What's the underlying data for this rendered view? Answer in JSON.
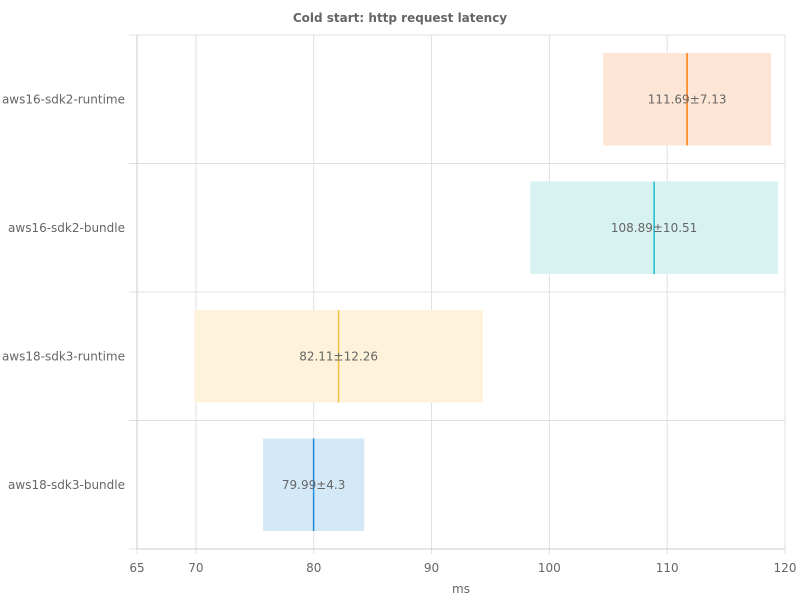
{
  "chart_data": {
    "type": "bar",
    "orientation": "horizontal",
    "title": "Cold start: http request latency",
    "xlabel": "ms",
    "ylabel": "",
    "xlim": [
      65,
      120
    ],
    "xticks": [
      65,
      70,
      80,
      90,
      100,
      110,
      120
    ],
    "grid": true,
    "legend": "none",
    "categories": [
      "aws16-sdk2-runtime",
      "aws16-sdk2-bundle",
      "aws18-sdk3-runtime",
      "aws18-sdk3-bundle"
    ],
    "series": [
      {
        "mean": 111.69,
        "std": 7.13,
        "label": "111.69±7.13",
        "color": "#ff7f0e",
        "fill": "#fde6d6"
      },
      {
        "mean": 108.89,
        "std": 10.51,
        "label": "108.89±10.51",
        "color": "#17becf",
        "fill": "#d8f1f1"
      },
      {
        "mean": 82.11,
        "std": 12.26,
        "label": "82.11±12.26",
        "color": "#f5c242",
        "fill": "#fef3da"
      },
      {
        "mean": 79.99,
        "std": 4.3,
        "label": "79.99±4.3",
        "color": "#1f8ad9",
        "fill": "#d4e9f8"
      }
    ]
  }
}
